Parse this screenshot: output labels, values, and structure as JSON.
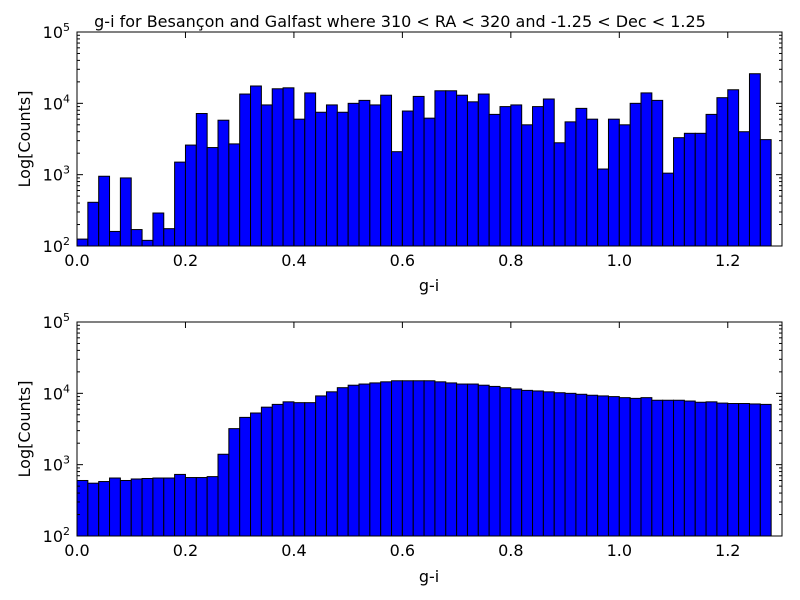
{
  "chart_data": [
    {
      "type": "bar",
      "title": "g-i for Besançon and Galfast where 310 < RA < 320 and -1.25 < Dec < 1.25",
      "xlabel": "g-i",
      "ylabel": "Log[Counts]",
      "xlim": [
        0.0,
        1.3
      ],
      "ylim": [
        100,
        100000
      ],
      "yscale": "log",
      "grid": false,
      "bin_start": 0.0,
      "bin_width": 0.02,
      "x_ticks": [
        "0.0",
        "0.2",
        "0.4",
        "0.6",
        "0.8",
        "1.0",
        "1.2"
      ],
      "x_tick_values": [
        0.0,
        0.2,
        0.4,
        0.6,
        0.8,
        1.0,
        1.2
      ],
      "y_ticks": [
        {
          "value": 100,
          "base": "10",
          "exp": "2"
        },
        {
          "value": 1000,
          "base": "10",
          "exp": "3"
        },
        {
          "value": 10000,
          "base": "10",
          "exp": "4"
        },
        {
          "value": 100000,
          "base": "10",
          "exp": "5"
        }
      ],
      "values": [
        125,
        410,
        950,
        160,
        900,
        170,
        120,
        290,
        175,
        1500,
        2600,
        7200,
        2400,
        5800,
        2700,
        13500,
        17500,
        9500,
        16000,
        16500,
        6000,
        14000,
        7500,
        9500,
        7500,
        10000,
        11000,
        9500,
        13000,
        2100,
        7800,
        12500,
        6200,
        15000,
        15000,
        13000,
        10500,
        13500,
        7000,
        9000,
        9500,
        5000,
        9000,
        11500,
        2800,
        5500,
        8500,
        6000,
        1200,
        6000,
        5000,
        10000,
        14000,
        11000,
        1050,
        3300,
        3800,
        3800,
        7000,
        12000,
        15500,
        4000,
        26000,
        3100
      ]
    },
    {
      "type": "bar",
      "title": "",
      "xlabel": "g-i",
      "ylabel": "Log[Counts]",
      "xlim": [
        0.0,
        1.3
      ],
      "ylim": [
        100,
        100000
      ],
      "yscale": "log",
      "grid": false,
      "bin_start": 0.0,
      "bin_width": 0.02,
      "x_ticks": [
        "0.0",
        "0.2",
        "0.4",
        "0.6",
        "0.8",
        "1.0",
        "1.2"
      ],
      "x_tick_values": [
        0.0,
        0.2,
        0.4,
        0.6,
        0.8,
        1.0,
        1.2
      ],
      "y_ticks": [
        {
          "value": 100,
          "base": "10",
          "exp": "2"
        },
        {
          "value": 1000,
          "base": "10",
          "exp": "3"
        },
        {
          "value": 10000,
          "base": "10",
          "exp": "4"
        },
        {
          "value": 100000,
          "base": "10",
          "exp": "5"
        }
      ],
      "values": [
        600,
        550,
        580,
        650,
        600,
        630,
        640,
        650,
        650,
        730,
        660,
        660,
        680,
        1400,
        3200,
        4600,
        5300,
        6400,
        7000,
        7600,
        7400,
        7400,
        9200,
        10500,
        12000,
        13000,
        13500,
        14000,
        14500,
        15000,
        15000,
        15000,
        15000,
        14500,
        14000,
        13500,
        13500,
        13000,
        12500,
        12000,
        11500,
        11000,
        10800,
        10500,
        10200,
        10000,
        9700,
        9400,
        9200,
        9000,
        8700,
        8500,
        8700,
        8000,
        8000,
        8000,
        7800,
        7500,
        7600,
        7300,
        7200,
        7200,
        7100,
        7000
      ]
    }
  ]
}
